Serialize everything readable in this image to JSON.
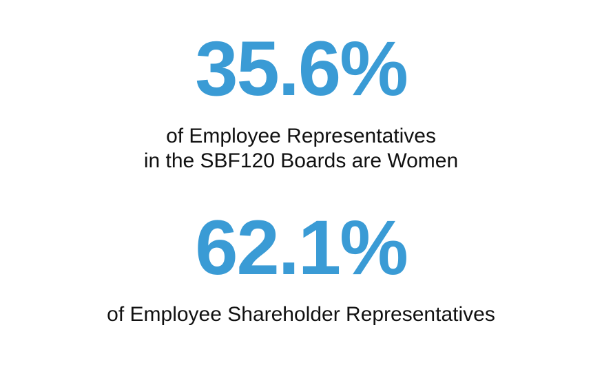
{
  "stats": [
    {
      "value": "35.6%",
      "caption_line1": "of Employee Representatives",
      "caption_line2": "in the SBF120 Boards are Women"
    },
    {
      "value": "62.1%",
      "caption_line1": "of Employee Shareholder Representatives"
    }
  ],
  "colors": {
    "accent": "#3a9bd5",
    "text": "#111111",
    "background": "#ffffff"
  }
}
